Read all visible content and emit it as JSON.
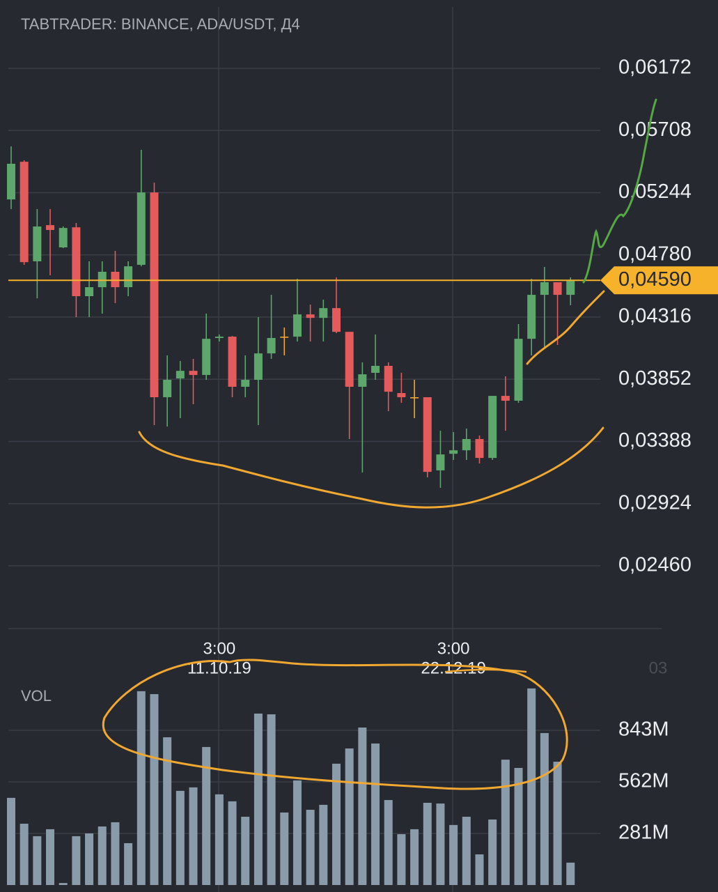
{
  "chart_data": [
    {
      "type": "candlestick",
      "title": "TABTRADER: BINANCE, ADA/USDT, Д4",
      "categories": [
        null,
        null,
        null,
        null,
        null,
        null,
        null,
        null,
        null,
        null,
        null,
        null,
        null,
        null,
        null,
        null,
        [
          "3:00",
          "11.10.19"
        ],
        null,
        null,
        null,
        null,
        null,
        null,
        null,
        null,
        null,
        null,
        null,
        null,
        null,
        null,
        null,
        null,
        null,
        [
          "3:00",
          "22.12.19"
        ],
        null,
        null,
        null,
        null,
        null,
        null,
        null,
        null,
        null
      ],
      "x_edge_label": "03",
      "open": [
        0.05194,
        0.05475,
        0.04732,
        0.05002,
        0.04836,
        0.04986,
        0.04472,
        0.04539,
        0.04654,
        0.04539,
        0.04706,
        0.05246,
        0.03718,
        0.03858,
        0.03915,
        0.03884,
        0.0416,
        0.0417,
        0.03796,
        0.03848,
        0.04045,
        0.0417,
        0.0417,
        0.04336,
        0.0431,
        0.04383,
        0.04206,
        0.03796,
        0.039,
        0.03952,
        0.03749,
        0.03718,
        0.03718,
        0.03172,
        0.03296,
        0.03322,
        0.03406,
        0.03265,
        0.03728,
        0.03692,
        0.04154,
        0.04482,
        0.04576,
        0.04482
      ],
      "high": [
        0.0559,
        0.05486,
        0.05122,
        0.05122,
        0.04992,
        0.05018,
        0.04732,
        0.04732,
        0.0481,
        0.04732,
        0.05564,
        0.05319,
        0.0403,
        0.03988,
        0.04004,
        0.04342,
        0.04186,
        0.04175,
        0.0403,
        0.04316,
        0.04482,
        0.04238,
        0.04602,
        0.04409,
        0.04446,
        0.04612,
        0.04206,
        0.03978,
        0.04186,
        0.03978,
        0.039,
        0.03848,
        0.03718,
        0.03468,
        0.03458,
        0.03484,
        0.03432,
        0.03728,
        0.03874,
        0.04264,
        0.04602,
        0.0469,
        0.04576,
        0.04612
      ],
      "low": [
        0.05122,
        0.04706,
        0.04456,
        0.04628,
        0.0483,
        0.04316,
        0.04316,
        0.04342,
        0.0442,
        0.04472,
        0.04695,
        0.0351,
        0.03499,
        0.03562,
        0.03666,
        0.03848,
        0.04134,
        0.03718,
        0.03718,
        0.0351,
        0.04004,
        0.0403,
        0.04134,
        0.04134,
        0.04134,
        0.04196,
        0.03406,
        0.03156,
        0.03848,
        0.03614,
        0.03676,
        0.03562,
        0.0312,
        0.03042,
        0.0325,
        0.0325,
        0.03224,
        0.0325,
        0.03468,
        0.03676,
        0.0403,
        0.04082,
        0.04108,
        0.04404
      ],
      "close": [
        0.0546,
        0.04726,
        0.04992,
        0.04966,
        0.04981,
        0.04472,
        0.04539,
        0.04654,
        0.04539,
        0.04695,
        0.05246,
        0.03718,
        0.03848,
        0.03915,
        0.03884,
        0.04154,
        0.0417,
        0.03796,
        0.03848,
        0.04045,
        0.0416,
        0.0417,
        0.04336,
        0.0431,
        0.04383,
        0.04206,
        0.03796,
        0.03889,
        0.03952,
        0.03759,
        0.03718,
        0.03718,
        0.03161,
        0.03291,
        0.03322,
        0.03406,
        0.03265,
        0.03728,
        0.03692,
        0.04154,
        0.04482,
        0.04576,
        0.04482,
        0.04591
      ],
      "up_color": "#5da66c",
      "down_color": "#e45b5b",
      "flat_color": "#f0a830",
      "last_price": {
        "value": 0.0459,
        "label": "0,04590"
      },
      "last_price_color": "#f5b22a",
      "ylim": [
        0.02002,
        0.0663
      ],
      "yticks": [
        {
          "value": 0.06172,
          "label": "0,06172"
        },
        {
          "value": 0.05708,
          "label": "0,05708"
        },
        {
          "value": 0.05244,
          "label": "0,05244"
        },
        {
          "value": 0.0478,
          "label": "0,04780"
        },
        {
          "value": 0.04316,
          "label": "0,04316"
        },
        {
          "value": 0.03852,
          "label": "0,03852"
        },
        {
          "value": 0.03388,
          "label": "0,03388"
        },
        {
          "value": 0.02924,
          "label": "0,02924"
        },
        {
          "value": 0.0246,
          "label": "0,02460"
        }
      ],
      "grid": true
    },
    {
      "type": "bar",
      "title": "VOL",
      "values": [
        475000000,
        334000000,
        266000000,
        304000000,
        11000000,
        266000000,
        281000000,
        319000000,
        342000000,
        228000000,
        1056000000,
        1040000000,
        805000000,
        513000000,
        532000000,
        752000000,
        494000000,
        456000000,
        372000000,
        934000000,
        930000000,
        395000000,
        570000000,
        410000000,
        437000000,
        661000000,
        744000000,
        858000000,
        771000000,
        463000000,
        277000000,
        304000000,
        448000000,
        444000000,
        327000000,
        372000000,
        167000000,
        357000000,
        683000000,
        638000000,
        1071000000,
        828000000,
        672000000,
        122000000
      ],
      "color": "#8a9caa",
      "ylim": [
        0,
        1082000000
      ],
      "yticks": [
        {
          "value": 843000000,
          "label": "843M"
        },
        {
          "value": 562000000,
          "label": "562M"
        },
        {
          "value": 281000000,
          "label": "281M"
        }
      ],
      "grid": true
    }
  ]
}
